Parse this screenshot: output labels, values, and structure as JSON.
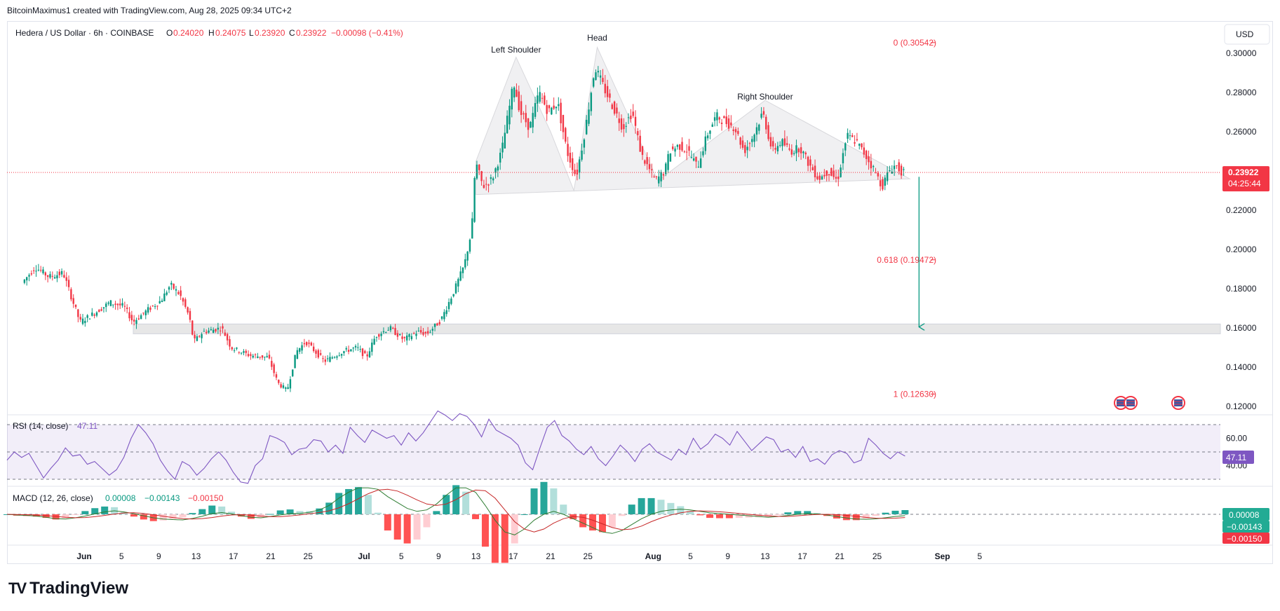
{
  "header": {
    "attribution": "BitcoinMaximus1 created with TradingView.com, Aug 28, 2025 09:34 UTC+2"
  },
  "brand": {
    "logo": "TV",
    "name": "TradingView"
  },
  "symbol": {
    "name": "Hedera / US Dollar · 6h · COINBASE",
    "open_label": "O",
    "open": "0.24020",
    "high_label": "H",
    "high": "0.24075",
    "low_label": "L",
    "low": "0.23920",
    "close_label": "C",
    "close": "0.23922",
    "change": "−0.00098 (−0.41%)"
  },
  "currency": "USD",
  "price_badge": {
    "price": "0.23922",
    "countdown": "04:25:44"
  },
  "colors": {
    "up": "#089981",
    "down": "#f23645",
    "rsi": "#7e57c2",
    "macd": "#2962ff",
    "signal": "#ff6d00",
    "fib": "#f23645"
  },
  "chart_data": [
    {
      "type": "candlestick",
      "title": "Hedera / US Dollar · 6h · COINBASE",
      "y_unit": "USD",
      "ylim": [
        0.115,
        0.31
      ],
      "y_ticks": [
        "0.30000",
        "0.28000",
        "0.26000",
        "0.24000",
        "0.22000",
        "0.20000",
        "0.18000",
        "0.16000",
        "0.14000",
        "0.12000"
      ],
      "x_ticks": [
        "Jun",
        "5",
        "9",
        "13",
        "17",
        "21",
        "25",
        "Jul",
        "5",
        "9",
        "13",
        "17",
        "21",
        "25",
        "Aug",
        "5",
        "9",
        "13",
        "17",
        "21",
        "25",
        "Sep",
        "5"
      ],
      "x_tick_days": [
        0,
        4,
        8,
        12,
        16,
        20,
        24,
        30,
        34,
        38,
        42,
        46,
        50,
        54,
        61,
        65,
        69,
        73,
        77,
        81,
        85,
        92,
        96
      ],
      "last_price": 0.23922,
      "price_path": [
        [
          -6.4,
          0.183
        ],
        [
          -5,
          0.191
        ],
        [
          -3.5,
          0.186
        ],
        [
          -2,
          0.188
        ],
        [
          -1,
          0.174
        ],
        [
          -0.2,
          0.163
        ],
        [
          1.5,
          0.168
        ],
        [
          3,
          0.173
        ],
        [
          4.5,
          0.171
        ],
        [
          5.5,
          0.163
        ],
        [
          7,
          0.169
        ],
        [
          8.5,
          0.174
        ],
        [
          9.5,
          0.182
        ],
        [
          10.5,
          0.177
        ],
        [
          11.5,
          0.166
        ],
        [
          12,
          0.153
        ],
        [
          13,
          0.158
        ],
        [
          15,
          0.16
        ],
        [
          16,
          0.15
        ],
        [
          18,
          0.146
        ],
        [
          20,
          0.145
        ],
        [
          21,
          0.132
        ],
        [
          22,
          0.128
        ],
        [
          23,
          0.148
        ],
        [
          24,
          0.153
        ],
        [
          25,
          0.148
        ],
        [
          26,
          0.143
        ],
        [
          28,
          0.148
        ],
        [
          29.5,
          0.15
        ],
        [
          30.5,
          0.145
        ],
        [
          31.5,
          0.156
        ],
        [
          33,
          0.16
        ],
        [
          34.5,
          0.154
        ],
        [
          36,
          0.158
        ],
        [
          37,
          0.157
        ],
        [
          38.5,
          0.164
        ],
        [
          40,
          0.18
        ],
        [
          41,
          0.192
        ],
        [
          41.8,
          0.21
        ],
        [
          42.2,
          0.245
        ],
        [
          43,
          0.232
        ],
        [
          44,
          0.236
        ],
        [
          45,
          0.25
        ],
        [
          46.3,
          0.285
        ],
        [
          47,
          0.27
        ],
        [
          48,
          0.262
        ],
        [
          49,
          0.28
        ],
        [
          50,
          0.27
        ],
        [
          51,
          0.275
        ],
        [
          52,
          0.25
        ],
        [
          53,
          0.237
        ],
        [
          54,
          0.262
        ],
        [
          55,
          0.293
        ],
        [
          56,
          0.282
        ],
        [
          57,
          0.272
        ],
        [
          58,
          0.262
        ],
        [
          59,
          0.27
        ],
        [
          60,
          0.248
        ],
        [
          61.5,
          0.235
        ],
        [
          62.5,
          0.24
        ],
        [
          63,
          0.25
        ],
        [
          64,
          0.253
        ],
        [
          65,
          0.25
        ],
        [
          66,
          0.242
        ],
        [
          67,
          0.258
        ],
        [
          68,
          0.268
        ],
        [
          69,
          0.265
        ],
        [
          70,
          0.262
        ],
        [
          71,
          0.25
        ],
        [
          72,
          0.258
        ],
        [
          73,
          0.27
        ],
        [
          74,
          0.25
        ],
        [
          75,
          0.255
        ],
        [
          76,
          0.25
        ],
        [
          77,
          0.252
        ],
        [
          78,
          0.243
        ],
        [
          79,
          0.236
        ],
        [
          80,
          0.24
        ],
        [
          81,
          0.235
        ],
        [
          82,
          0.258
        ],
        [
          83,
          0.255
        ],
        [
          84,
          0.248
        ],
        [
          85,
          0.24
        ],
        [
          85.8,
          0.232
        ],
        [
          86.5,
          0.24
        ],
        [
          87.2,
          0.243
        ],
        [
          88,
          0.239
        ]
      ],
      "patterns": [
        {
          "label": "Left Shoulder",
          "day": 46.3,
          "price": 0.304
        },
        {
          "label": "Head",
          "day": 55,
          "price": 0.31
        },
        {
          "label": "Right Shoulder",
          "day": 73,
          "price": 0.28
        }
      ],
      "head_shoulders_polygon": [
        [
          42,
          0.245
        ],
        [
          46.3,
          0.298
        ],
        [
          50,
          0.26
        ],
        [
          52.5,
          0.23
        ],
        [
          55,
          0.303
        ],
        [
          61.5,
          0.235
        ],
        [
          73,
          0.276
        ],
        [
          88.5,
          0.236
        ],
        [
          48,
          0.229
        ],
        [
          42,
          0.228
        ]
      ],
      "fibonacci": [
        {
          "label": "0 (0.30542)",
          "price": 0.30542
        },
        {
          "label": "0.618 (0.19472)",
          "price": 0.19472
        },
        {
          "label": "1 (0.12630)",
          "price": 0.1263
        }
      ],
      "support_zone": [
        0.157,
        0.162
      ],
      "target_arrow": {
        "from_day": 89.5,
        "from_price": 0.237,
        "to_price": 0.1605
      }
    },
    {
      "type": "line",
      "title": "RSI (14, close)",
      "value": "47.11",
      "ylim": [
        20,
        80
      ],
      "levels": [
        70,
        50,
        30
      ],
      "y_ticks": [
        "60.00",
        "40.00"
      ],
      "values": [
        44,
        50,
        46,
        49,
        40,
        31,
        38,
        44,
        53,
        47,
        48,
        41,
        43,
        38,
        33,
        37,
        46,
        60,
        70,
        64,
        56,
        44,
        36,
        30,
        43,
        40,
        33,
        38,
        45,
        50,
        44,
        35,
        28,
        27,
        40,
        45,
        62,
        60,
        57,
        48,
        52,
        53,
        59,
        58,
        50,
        55,
        49,
        68,
        62,
        57,
        66,
        63,
        60,
        62,
        55,
        64,
        58,
        64,
        72,
        81,
        77,
        73,
        78,
        76,
        70,
        61,
        74,
        66,
        63,
        60,
        55,
        42,
        37,
        53,
        68,
        73,
        62,
        58,
        52,
        48,
        54,
        45,
        40,
        47,
        55,
        50,
        43,
        52,
        56,
        50,
        47,
        44,
        52,
        48,
        60,
        52,
        56,
        63,
        60,
        55,
        65,
        58,
        51,
        56,
        61,
        59,
        50,
        52,
        46,
        54,
        43,
        45,
        41,
        48,
        51,
        49,
        42,
        44,
        60,
        55,
        49,
        45,
        50,
        47
      ]
    },
    {
      "type": "line",
      "title": "MACD (12, 26, close)",
      "values_text": {
        "histogram": "0.00008",
        "macd": "−0.00143",
        "signal": "−0.00150"
      },
      "macd": [
        0,
        -0.5,
        -0.8,
        -1.2,
        -2,
        -3,
        -3.2,
        -2.4,
        -1.2,
        0.3,
        1.6,
        2.4,
        1.6,
        0.4,
        -1,
        -2.4,
        -3.2,
        -3.6,
        -3.8,
        -2.8,
        -1.3,
        0.5,
        1.2,
        0.3,
        -0.9,
        -2,
        -2.4,
        -1.5,
        -0.4,
        0.4,
        0.6,
        1.4,
        3,
        6,
        11,
        15,
        19,
        20,
        17,
        12,
        8,
        4,
        2,
        3,
        7,
        13,
        19,
        21,
        15,
        6,
        -4,
        -12,
        -14,
        -10,
        -4,
        0,
        2,
        0,
        -3,
        -6,
        -9,
        -12,
        -13,
        -11,
        -7,
        -3,
        0,
        2,
        3,
        3.5,
        3,
        2,
        1,
        0.5,
        0,
        -0.5,
        -1,
        -1.5,
        -2,
        -1.5,
        -0.8,
        0,
        0.5,
        0.3,
        -0.5,
        -1.5,
        -2.5,
        -3.2,
        -3.4,
        -3.1,
        -2.3,
        -1.5,
        -0.9
      ],
      "signal": [
        0,
        -0.1,
        -0.3,
        -0.5,
        -0.9,
        -1.4,
        -2,
        -2.3,
        -2.2,
        -1.6,
        -0.8,
        0.2,
        0.9,
        1.1,
        0.6,
        -0.3,
        -1.3,
        -2.2,
        -2.9,
        -3.2,
        -2.9,
        -2.2,
        -1.2,
        -0.5,
        -0.2,
        -0.6,
        -1.2,
        -1.6,
        -1.6,
        -1.1,
        -0.4,
        0.4,
        1.2,
        2.4,
        4.4,
        7.2,
        10.6,
        14,
        16.5,
        17,
        15.8,
        13,
        9.8,
        7,
        6,
        7,
        10,
        14,
        16.5,
        16,
        11,
        3,
        -5,
        -10,
        -12,
        -10,
        -6,
        -3,
        -1.5,
        -2,
        -4,
        -6.5,
        -9,
        -10.5,
        -10,
        -8,
        -5,
        -2.5,
        -0.5,
        1,
        2,
        2.3,
        2.1,
        1.7,
        1.2,
        0.6,
        0,
        -0.6,
        -1.1,
        -1.4,
        -1.4,
        -1,
        -0.5,
        -0.1,
        0,
        -0.2,
        -0.7,
        -1.4,
        -2.1,
        -2.6,
        -2.8,
        -2.6,
        -2.2
      ]
    }
  ]
}
